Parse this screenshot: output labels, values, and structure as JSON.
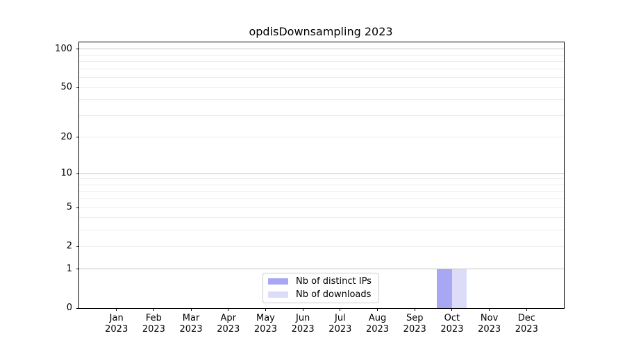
{
  "chart_data": {
    "type": "bar",
    "title": "opdisDownsampling 2023",
    "categories": [
      "Jan",
      "Feb",
      "Mar",
      "Apr",
      "May",
      "Jun",
      "Jul",
      "Aug",
      "Sep",
      "Oct",
      "Nov",
      "Dec"
    ],
    "category_year": "2023",
    "series": [
      {
        "name": "Nb of distinct IPs",
        "color": "#a7a7f3",
        "values": [
          0,
          0,
          0,
          0,
          0,
          0,
          0,
          0,
          0,
          1,
          0,
          0
        ]
      },
      {
        "name": "Nb of downloads",
        "color": "#dcdcf9",
        "values": [
          0,
          0,
          0,
          0,
          0,
          0,
          0,
          0,
          0,
          1,
          0,
          0
        ]
      }
    ],
    "y_scale": "log1p",
    "y_tick_values": [
      0,
      1,
      2,
      5,
      10,
      20,
      50,
      100
    ],
    "y_major_gridlines": [
      1,
      10,
      100
    ],
    "y_minor_gridlines": [
      2,
      3,
      4,
      5,
      6,
      7,
      8,
      9,
      20,
      30,
      40,
      50,
      60,
      70,
      80,
      90
    ],
    "ylim": [
      0,
      113
    ],
    "grid": "horizontal",
    "legend_position": "lower-center",
    "colors": {
      "major_grid": "#c3c3c3",
      "minor_grid": "#ebebeb",
      "spine": "#000000",
      "text": "#000000",
      "legend_border": "#cccccc"
    }
  }
}
